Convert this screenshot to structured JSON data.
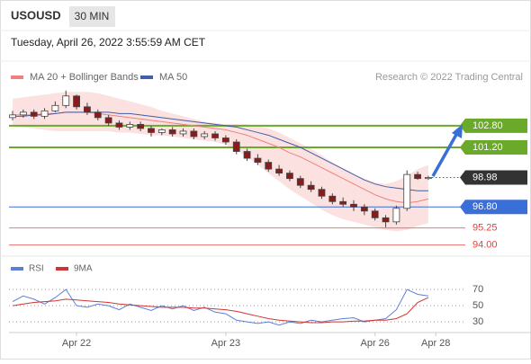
{
  "header": {
    "symbol": "USOUSD",
    "timeframe": "30 MIN",
    "datetime": "Tuesday, April 26, 2022 3:55:59 AM CET",
    "credit": "Research © 2022 Trading Central"
  },
  "chart_data": [
    {
      "type": "candlestick",
      "x": [
        0,
        1,
        2,
        3,
        4,
        5,
        6,
        7,
        8,
        9,
        10,
        11,
        12,
        13,
        14,
        15,
        16,
        17,
        18,
        19,
        20,
        21,
        22,
        23,
        24,
        25,
        26,
        27,
        28,
        29,
        30,
        31,
        32,
        33,
        34,
        35,
        36,
        37,
        38,
        39
      ],
      "open": [
        103.4,
        103.6,
        103.8,
        103.5,
        103.9,
        104.3,
        105.0,
        104.2,
        103.8,
        103.4,
        103.0,
        102.7,
        102.9,
        102.6,
        102.3,
        102.5,
        102.2,
        102.4,
        102.0,
        102.2,
        101.9,
        101.6,
        100.9,
        100.4,
        100.1,
        99.6,
        99.3,
        98.9,
        98.4,
        98.1,
        97.6,
        97.2,
        97.0,
        96.8,
        96.5,
        96.0,
        95.7,
        96.7,
        99.2,
        98.9
      ],
      "high": [
        103.9,
        104.0,
        104.0,
        104.1,
        104.6,
        105.4,
        105.1,
        104.5,
        104.0,
        103.6,
        103.2,
        103.1,
        103.1,
        102.8,
        102.6,
        102.7,
        102.6,
        102.6,
        102.4,
        102.4,
        102.1,
        101.8,
        101.1,
        100.7,
        100.3,
        99.9,
        99.5,
        99.1,
        98.7,
        98.3,
        97.8,
        97.5,
        97.3,
        97.0,
        96.7,
        96.2,
        96.9,
        99.5,
        99.4,
        99.1
      ],
      "low": [
        103.2,
        103.4,
        103.3,
        103.3,
        103.8,
        104.1,
        104.0,
        103.6,
        103.2,
        102.8,
        102.5,
        102.5,
        102.4,
        102.0,
        102.1,
        102.0,
        102.0,
        101.8,
        101.8,
        101.7,
        101.4,
        100.7,
        100.2,
        99.9,
        99.4,
        99.1,
        98.7,
        98.2,
        97.9,
        97.4,
        97.0,
        96.8,
        96.5,
        96.2,
        95.8,
        95.3,
        95.5,
        96.5,
        98.8,
        98.8
      ],
      "close": [
        103.6,
        103.8,
        103.5,
        103.9,
        104.3,
        105.0,
        104.2,
        103.8,
        103.4,
        103.0,
        102.7,
        102.9,
        102.6,
        102.3,
        102.5,
        102.2,
        102.4,
        102.0,
        102.2,
        101.9,
        101.6,
        100.9,
        100.4,
        100.1,
        99.6,
        99.3,
        98.9,
        98.4,
        98.1,
        97.6,
        97.2,
        97.0,
        96.8,
        96.5,
        96.0,
        95.7,
        96.7,
        99.2,
        98.9,
        98.98
      ],
      "up_color": "#ffffff",
      "down_color": "#8b1a1a",
      "series": [
        {
          "name": "MA 20 + Bollinger Bands",
          "color": "#f08080",
          "band_color": "#fbd9d9",
          "values": [
            103.6,
            103.6,
            103.6,
            103.7,
            103.7,
            103.8,
            103.8,
            103.8,
            103.7,
            103.6,
            103.5,
            103.4,
            103.3,
            103.2,
            103.1,
            103.0,
            102.9,
            102.8,
            102.7,
            102.6,
            102.5,
            102.3,
            102.1,
            101.8,
            101.5,
            101.2,
            100.8,
            100.5,
            100.1,
            99.7,
            99.3,
            98.9,
            98.5,
            98.1,
            97.7,
            97.4,
            97.2,
            97.1,
            97.2,
            97.4
          ],
          "upper": [
            104.8,
            104.9,
            105.0,
            105.1,
            105.2,
            105.3,
            105.3,
            105.3,
            105.2,
            105.0,
            104.8,
            104.6,
            104.4,
            104.2,
            103.9,
            103.7,
            103.5,
            103.3,
            103.1,
            103.0,
            102.9,
            102.9,
            102.9,
            102.8,
            102.6,
            102.3,
            101.9,
            101.5,
            101.1,
            100.6,
            100.1,
            99.6,
            99.2,
            98.9,
            98.6,
            98.5,
            98.7,
            99.1,
            99.6,
            99.9
          ],
          "lower": [
            102.8,
            102.7,
            102.6,
            102.5,
            102.4,
            102.4,
            102.4,
            102.4,
            102.4,
            102.4,
            102.3,
            102.3,
            102.2,
            102.1,
            102.1,
            102.0,
            101.9,
            101.8,
            101.7,
            101.6,
            101.4,
            101.0,
            100.5,
            99.9,
            99.3,
            98.7,
            98.1,
            97.6,
            97.1,
            96.6,
            96.2,
            95.9,
            95.7,
            95.5,
            95.3,
            95.1,
            95.0,
            95.1,
            95.4,
            95.6
          ]
        },
        {
          "name": "MA 50",
          "color": "#3f5fa8",
          "values": [
            103.5,
            103.5,
            103.6,
            103.6,
            103.7,
            103.8,
            103.8,
            103.8,
            103.8,
            103.8,
            103.7,
            103.7,
            103.6,
            103.5,
            103.4,
            103.3,
            103.2,
            103.1,
            103.0,
            102.9,
            102.8,
            102.7,
            102.5,
            102.3,
            102.1,
            101.8,
            101.5,
            101.2,
            100.8,
            100.4,
            100.0,
            99.6,
            99.2,
            98.8,
            98.5,
            98.3,
            98.2,
            98.1,
            98.0,
            98.0
          ]
        }
      ],
      "levels": [
        {
          "value": 102.8,
          "label": "102.80",
          "color": "#6aa92a",
          "style": "tag"
        },
        {
          "value": 101.2,
          "label": "101.20",
          "color": "#6aa92a",
          "style": "tag"
        },
        {
          "value": 98.98,
          "label": "98.98",
          "color": "#333333",
          "style": "current"
        },
        {
          "value": 96.8,
          "label": "96.80",
          "color": "#3b6fd8",
          "style": "tag"
        },
        {
          "value": 95.25,
          "label": "95.25",
          "color": "#e8403a",
          "style": "text"
        },
        {
          "value": 94.0,
          "label": "94.00",
          "color": "#e8403a",
          "style": "text"
        }
      ],
      "xlim": [
        -0.17,
        42.3
      ],
      "ylim": [
        93.3,
        105.45
      ],
      "xticks": [
        {
          "value": 6,
          "label": "Apr 22"
        },
        {
          "value": 20,
          "label": "Apr 23"
        },
        {
          "value": 34,
          "label": "Apr 26"
        },
        {
          "value": 39.7,
          "label": "Apr 28"
        }
      ]
    },
    {
      "type": "line",
      "x": [
        0,
        1,
        2,
        3,
        4,
        5,
        6,
        7,
        8,
        9,
        10,
        11,
        12,
        13,
        14,
        15,
        16,
        17,
        18,
        19,
        20,
        21,
        22,
        23,
        24,
        25,
        26,
        27,
        28,
        29,
        30,
        31,
        32,
        33,
        34,
        35,
        36,
        37,
        38,
        39
      ],
      "series": [
        {
          "name": "RSI",
          "color": "#5b7fd6",
          "values": [
            55,
            62,
            58,
            52,
            60,
            70,
            50,
            48,
            52,
            50,
            45,
            52,
            48,
            44,
            50,
            46,
            50,
            44,
            48,
            42,
            40,
            32,
            30,
            28,
            30,
            26,
            30,
            28,
            32,
            30,
            32,
            34,
            35,
            30,
            32,
            34,
            45,
            70,
            64,
            62
          ]
        },
        {
          "name": "9MA",
          "color": "#d33333",
          "values": [
            50,
            52,
            54,
            55,
            56,
            58,
            57,
            56,
            55,
            54,
            52,
            51,
            50,
            49,
            48,
            48,
            48,
            47,
            47,
            46,
            45,
            43,
            40,
            37,
            34,
            32,
            31,
            30,
            29,
            29,
            30,
            30,
            31,
            31,
            32,
            32,
            34,
            40,
            54,
            60
          ]
        }
      ],
      "xlim": [
        -0.17,
        42.3
      ],
      "ylim": [
        19,
        89
      ],
      "yticks": [
        70,
        50,
        30
      ],
      "grid": true
    }
  ]
}
